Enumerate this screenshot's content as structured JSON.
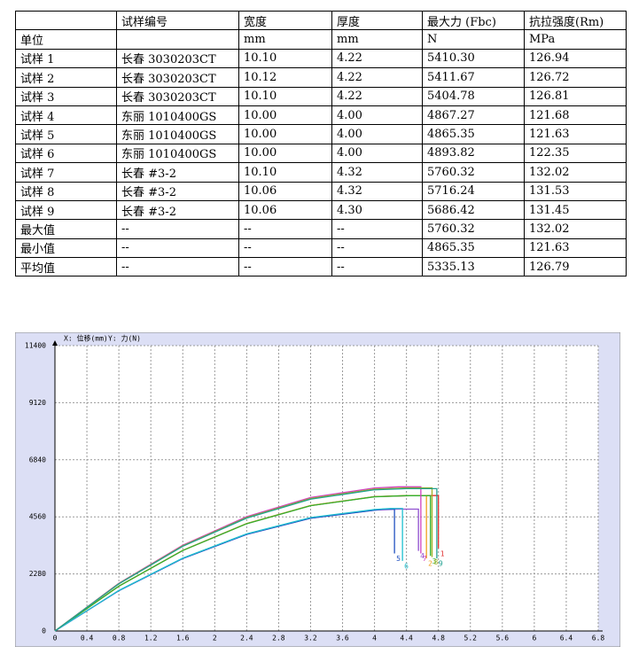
{
  "table": {
    "rows": [
      [
        null,
        "试样编号",
        "宽度",
        "厚度",
        "最大力 (Fbc)",
        "抗拉强度(Rm)"
      ],
      [
        "单位",
        null,
        "mm",
        "mm",
        "N",
        "MPa"
      ],
      [
        "试样 1",
        "长春 3030203CT",
        "10.10",
        "4.22",
        "5410.30",
        "126.94"
      ],
      [
        "试样 2",
        "长春 3030203CT",
        "10.12",
        "4.22",
        "5411.67",
        "126.72"
      ],
      [
        "试样 3",
        "长春 3030203CT",
        "10.10",
        "4.22",
        "5404.78",
        "126.81"
      ],
      [
        "试样 4",
        "东丽 1010400GS",
        "10.00",
        "4.00",
        "4867.27",
        "121.68"
      ],
      [
        "试样 5",
        "东丽 1010400GS",
        "10.00",
        "4.00",
        "4865.35",
        "121.63"
      ],
      [
        "试样 6",
        "东丽 1010400GS",
        "10.00",
        "4.00",
        "4893.82",
        "122.35"
      ],
      [
        "试样 7",
        "长春 #3-2",
        "10.10",
        "4.32",
        "5760.32",
        "132.02"
      ],
      [
        "试样 8",
        "长春 #3-2",
        "10.06",
        "4.32",
        "5716.24",
        "131.53"
      ],
      [
        "试样 9",
        "长春 #3-2",
        "10.06",
        "4.30",
        "5686.42",
        "131.45"
      ],
      [
        "最大值",
        "--",
        "--",
        "--",
        "5760.32",
        "132.02"
      ],
      [
        "最小值",
        "--",
        "--",
        "--",
        "4865.35",
        "121.63"
      ],
      [
        "平均值",
        "--",
        "--",
        "--",
        "5335.13",
        "126.79"
      ]
    ]
  },
  "chart_data": {
    "type": "line",
    "x_label": "X: 位移(mm)",
    "y_label": "Y: 力(N)",
    "xlim": [
      0,
      6.8
    ],
    "ylim": [
      0,
      11400
    ],
    "xticks": [
      0,
      0.4,
      0.8,
      1.2,
      1.6,
      2,
      2.4,
      2.8,
      3.2,
      3.6,
      4,
      4.4,
      4.8,
      5.2,
      5.6,
      6,
      6.4,
      6.8
    ],
    "yticks": [
      0,
      2280,
      4560,
      6840,
      9120,
      11400
    ],
    "grid": true,
    "series": [
      {
        "name": "1",
        "color": "#e03030",
        "x": [
          0,
          0.8,
          1.6,
          2.4,
          3.2,
          4.0,
          4.5,
          4.8,
          4.8
        ],
        "values": [
          0,
          1791,
          3219,
          4290,
          5010,
          5367,
          5410,
          5410,
          3300
        ]
      },
      {
        "name": "2",
        "color": "#f0a020",
        "x": [
          0,
          0.8,
          1.6,
          2.4,
          3.2,
          4.0,
          4.4,
          4.65,
          4.65
        ],
        "values": [
          0,
          1791,
          3220,
          4292,
          5012,
          5369,
          5412,
          5412,
          2900
        ]
      },
      {
        "name": "3",
        "color": "#30b030",
        "x": [
          0,
          0.8,
          1.6,
          2.4,
          3.2,
          4.0,
          4.4,
          4.7,
          4.7
        ],
        "values": [
          0,
          1789,
          3216,
          4286,
          5005,
          5362,
          5405,
          5405,
          3000
        ]
      },
      {
        "name": "4",
        "color": "#9050d0",
        "x": [
          0,
          0.8,
          1.6,
          2.4,
          3.2,
          4.0,
          4.3,
          4.55,
          4.55
        ],
        "values": [
          0,
          1611,
          2896,
          3860,
          4507,
          4828,
          4867,
          4867,
          3200
        ]
      },
      {
        "name": "5",
        "color": "#2050c0",
        "x": [
          0,
          0.8,
          1.6,
          2.4,
          3.2,
          4.0,
          4.1,
          4.25,
          4.25
        ],
        "values": [
          0,
          1610,
          2895,
          3858,
          4505,
          4826,
          4865,
          4865,
          3100
        ]
      },
      {
        "name": "6",
        "color": "#20c0d0",
        "x": [
          0,
          0.8,
          1.6,
          2.4,
          3.2,
          4.0,
          4.2,
          4.35,
          4.35
        ],
        "values": [
          0,
          1620,
          2912,
          3881,
          4532,
          4855,
          4894,
          4894,
          2800
        ]
      },
      {
        "name": "7",
        "color": "#d040c0",
        "x": [
          0,
          0.8,
          1.6,
          2.4,
          3.2,
          4.0,
          4.3,
          4.58,
          4.58
        ],
        "values": [
          0,
          1907,
          3427,
          4568,
          5334,
          5714,
          5760,
          5760,
          3100
        ]
      },
      {
        "name": "8",
        "color": "#a0b020",
        "x": [
          0,
          0.8,
          1.6,
          2.4,
          3.2,
          4.0,
          4.4,
          4.72,
          4.72
        ],
        "values": [
          0,
          1892,
          3401,
          4533,
          5293,
          5670,
          5716,
          5716,
          2950
        ]
      },
      {
        "name": "9",
        "color": "#20a090",
        "x": [
          0,
          0.8,
          1.6,
          2.4,
          3.2,
          4.0,
          4.4,
          4.78,
          4.78
        ],
        "values": [
          0,
          1882,
          3383,
          4509,
          5265,
          5641,
          5686,
          5686,
          2900
        ]
      }
    ]
  }
}
